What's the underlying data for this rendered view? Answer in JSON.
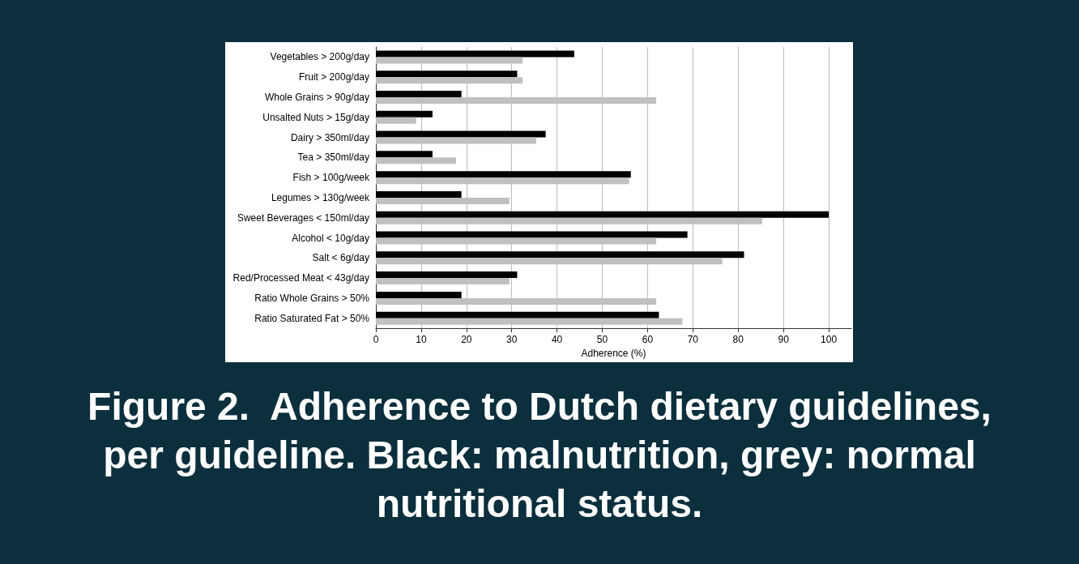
{
  "chart_data": {
    "type": "bar",
    "orientation": "horizontal",
    "title": "Figure 2.  Adherence to Dutch dietary guidelines, per guideline. Black: malnutrition, grey: normal nutritional status.",
    "xlabel": "Adherence (%)",
    "categories": [
      "Vegetables > 200g/day",
      "Fruit > 200g/day",
      "Whole Grains > 90g/day",
      "Unsalted Nuts > 15g/day",
      "Dairy > 350ml/day",
      "Tea > 350ml/day",
      "Fish > 100g/week",
      "Legumes > 130g/week",
      "Sweet Beverages < 150ml/day",
      "Alcohol < 10g/day",
      "Salt < 6g/day",
      "Red/Processed Meat < 43g/day",
      "Ratio Whole Grains > 50%",
      "Ratio Saturated Fat > 50%"
    ],
    "series": [
      {
        "color": "#000000",
        "values": [
          43.8,
          31.2,
          18.9,
          12.5,
          37.5,
          12.5,
          56.3,
          18.9,
          100,
          68.8,
          81.3,
          31.2,
          18.9,
          62.5
        ]
      },
      {
        "color": "#c0c0c0",
        "values": [
          32.4,
          32.4,
          61.9,
          8.9,
          35.4,
          17.7,
          55.9,
          29.5,
          85.3,
          61.9,
          76.5,
          29.5,
          61.9,
          67.7
        ]
      }
    ],
    "xlim": [
      0,
      105
    ],
    "xticks": [
      0,
      10,
      20,
      30,
      40,
      50,
      60,
      70,
      80,
      90,
      100
    ],
    "grid": "x"
  }
}
